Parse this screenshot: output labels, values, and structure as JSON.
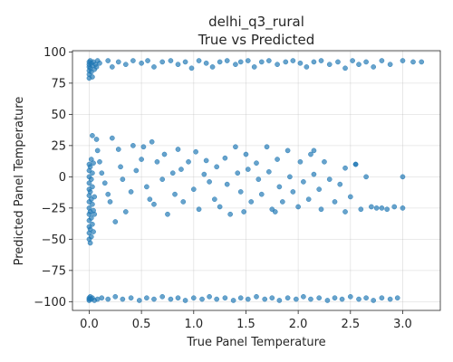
{
  "chart_data": {
    "type": "scatter",
    "title": "delhi_q3_rural",
    "subtitle": "True vs Predicted",
    "xlabel": "True Panel Temperature",
    "ylabel": "Predicted Panel Temperature",
    "xlim": [
      -0.16,
      3.36
    ],
    "ylim": [
      -107,
      101
    ],
    "xticks": [
      0.0,
      0.5,
      1.0,
      1.5,
      2.0,
      2.5,
      3.0
    ],
    "xtick_labels": [
      "0.0",
      "0.5",
      "1.0",
      "1.5",
      "2.0",
      "2.5",
      "3.0"
    ],
    "yticks": [
      -100,
      -75,
      -50,
      -25,
      0,
      25,
      50,
      75,
      100
    ],
    "ytick_labels": [
      "−100",
      "−75",
      "−50",
      "−25",
      "0",
      "25",
      "50",
      "75",
      "100"
    ],
    "grid": true,
    "marker_color": "#1f77b4",
    "series": [
      {
        "points": [
          [
            0.0,
            92
          ],
          [
            0.0,
            90
          ],
          [
            0.0,
            88
          ],
          [
            0.0,
            85
          ],
          [
            0.0,
            82
          ],
          [
            0.0,
            79
          ],
          [
            0.01,
            93
          ],
          [
            0.01,
            87
          ],
          [
            0.02,
            91
          ],
          [
            0.02,
            84
          ],
          [
            0.03,
            89
          ],
          [
            0.03,
            80
          ],
          [
            0.04,
            92
          ],
          [
            0.05,
            86
          ],
          [
            0.06,
            90
          ],
          [
            0.07,
            88
          ],
          [
            0.08,
            93
          ],
          [
            0.1,
            91
          ],
          [
            0.18,
            93
          ],
          [
            0.22,
            88
          ],
          [
            0.28,
            92
          ],
          [
            0.35,
            90
          ],
          [
            0.42,
            93
          ],
          [
            0.5,
            91
          ],
          [
            0.56,
            93
          ],
          [
            0.62,
            88
          ],
          [
            0.7,
            92
          ],
          [
            0.78,
            93
          ],
          [
            0.85,
            90
          ],
          [
            0.92,
            92
          ],
          [
            0.98,
            87
          ],
          [
            1.05,
            93
          ],
          [
            1.12,
            91
          ],
          [
            1.18,
            88
          ],
          [
            1.25,
            92
          ],
          [
            1.32,
            93
          ],
          [
            1.4,
            90
          ],
          [
            1.45,
            92
          ],
          [
            1.52,
            93
          ],
          [
            1.58,
            88
          ],
          [
            1.65,
            92
          ],
          [
            1.72,
            93
          ],
          [
            1.8,
            90
          ],
          [
            1.88,
            92
          ],
          [
            1.95,
            93
          ],
          [
            2.02,
            91
          ],
          [
            2.08,
            88
          ],
          [
            2.15,
            92
          ],
          [
            2.22,
            93
          ],
          [
            2.3,
            90
          ],
          [
            2.38,
            92
          ],
          [
            2.45,
            87
          ],
          [
            2.52,
            93
          ],
          [
            2.58,
            90
          ],
          [
            2.65,
            92
          ],
          [
            2.72,
            88
          ],
          [
            2.8,
            93
          ],
          [
            2.88,
            90
          ],
          [
            3.0,
            93
          ],
          [
            3.1,
            92
          ],
          [
            3.18,
            92
          ],
          [
            0.0,
            -98
          ],
          [
            0.0,
            -97
          ],
          [
            0.0,
            -99
          ],
          [
            0.01,
            -96
          ],
          [
            0.02,
            -98
          ],
          [
            0.03,
            -97
          ],
          [
            0.05,
            -99
          ],
          [
            0.08,
            -98
          ],
          [
            0.12,
            -97
          ],
          [
            0.18,
            -98
          ],
          [
            0.25,
            -96
          ],
          [
            0.32,
            -98
          ],
          [
            0.4,
            -97
          ],
          [
            0.48,
            -99
          ],
          [
            0.55,
            -97
          ],
          [
            0.62,
            -98
          ],
          [
            0.7,
            -96
          ],
          [
            0.78,
            -98
          ],
          [
            0.85,
            -97
          ],
          [
            0.92,
            -99
          ],
          [
            1.0,
            -97
          ],
          [
            1.08,
            -98
          ],
          [
            1.15,
            -96
          ],
          [
            1.22,
            -98
          ],
          [
            1.3,
            -97
          ],
          [
            1.38,
            -99
          ],
          [
            1.45,
            -97
          ],
          [
            1.52,
            -98
          ],
          [
            1.6,
            -96
          ],
          [
            1.68,
            -98
          ],
          [
            1.75,
            -97
          ],
          [
            1.82,
            -99
          ],
          [
            1.9,
            -97
          ],
          [
            1.98,
            -98
          ],
          [
            2.05,
            -96
          ],
          [
            2.12,
            -98
          ],
          [
            2.2,
            -97
          ],
          [
            2.28,
            -99
          ],
          [
            2.35,
            -97
          ],
          [
            2.42,
            -98
          ],
          [
            2.5,
            -96
          ],
          [
            2.58,
            -98
          ],
          [
            2.65,
            -97
          ],
          [
            2.72,
            -99
          ],
          [
            2.8,
            -97
          ],
          [
            2.88,
            -98
          ],
          [
            2.95,
            -97
          ],
          [
            0.0,
            -50
          ],
          [
            0.0,
            -45
          ],
          [
            0.0,
            -40
          ],
          [
            0.0,
            -35
          ],
          [
            0.0,
            -30
          ],
          [
            0.0,
            -25
          ],
          [
            0.0,
            -20
          ],
          [
            0.0,
            -15
          ],
          [
            0.0,
            -10
          ],
          [
            0.0,
            -5
          ],
          [
            0.0,
            0
          ],
          [
            0.0,
            5
          ],
          [
            0.0,
            10
          ],
          [
            0.01,
            -53
          ],
          [
            0.01,
            -42
          ],
          [
            0.01,
            -28
          ],
          [
            0.01,
            -12
          ],
          [
            0.01,
            8
          ],
          [
            0.02,
            -48
          ],
          [
            0.02,
            -33
          ],
          [
            0.02,
            -18
          ],
          [
            0.02,
            -2
          ],
          [
            0.02,
            14
          ],
          [
            0.03,
            -38
          ],
          [
            0.03,
            -22
          ],
          [
            0.03,
            -8
          ],
          [
            0.03,
            3
          ],
          [
            0.04,
            -44
          ],
          [
            0.04,
            -27
          ],
          [
            0.04,
            11
          ],
          [
            0.05,
            -16
          ],
          [
            0.05,
            -30
          ],
          [
            0.03,
            33
          ],
          [
            0.07,
            30
          ],
          [
            0.08,
            21
          ],
          [
            0.1,
            12
          ],
          [
            0.12,
            3
          ],
          [
            0.15,
            -5
          ],
          [
            0.18,
            -14
          ],
          [
            0.2,
            -20
          ],
          [
            0.22,
            31
          ],
          [
            0.25,
            -36
          ],
          [
            0.28,
            22
          ],
          [
            0.3,
            8
          ],
          [
            0.32,
            -2
          ],
          [
            0.35,
            -28
          ],
          [
            0.4,
            -12
          ],
          [
            0.42,
            25
          ],
          [
            0.45,
            5
          ],
          [
            0.5,
            14
          ],
          [
            0.52,
            24
          ],
          [
            0.55,
            -8
          ],
          [
            0.58,
            -18
          ],
          [
            0.6,
            28
          ],
          [
            0.62,
            -22
          ],
          [
            0.65,
            12
          ],
          [
            0.7,
            -2
          ],
          [
            0.72,
            18
          ],
          [
            0.75,
            -30
          ],
          [
            0.8,
            3
          ],
          [
            0.82,
            -14
          ],
          [
            0.85,
            22
          ],
          [
            0.88,
            6
          ],
          [
            0.9,
            -20
          ],
          [
            0.95,
            12
          ],
          [
            1.0,
            -10
          ],
          [
            1.02,
            20
          ],
          [
            1.05,
            -26
          ],
          [
            1.1,
            2
          ],
          [
            1.12,
            13
          ],
          [
            1.15,
            -4
          ],
          [
            1.2,
            -18
          ],
          [
            1.22,
            8
          ],
          [
            1.25,
            -24
          ],
          [
            1.3,
            15
          ],
          [
            1.32,
            -6
          ],
          [
            1.35,
            -30
          ],
          [
            1.4,
            24
          ],
          [
            1.42,
            3
          ],
          [
            1.45,
            -12
          ],
          [
            1.48,
            -28
          ],
          [
            1.5,
            18
          ],
          [
            1.52,
            6
          ],
          [
            1.55,
            -20
          ],
          [
            1.6,
            11
          ],
          [
            1.62,
            -2
          ],
          [
            1.65,
            -14
          ],
          [
            1.7,
            24
          ],
          [
            1.72,
            4
          ],
          [
            1.75,
            -26
          ],
          [
            1.8,
            14
          ],
          [
            1.82,
            -8
          ],
          [
            1.85,
            -20
          ],
          [
            1.9,
            21
          ],
          [
            1.92,
            0
          ],
          [
            1.95,
            -12
          ],
          [
            2.0,
            -24
          ],
          [
            2.02,
            12
          ],
          [
            2.05,
            -4
          ],
          [
            2.1,
            -18
          ],
          [
            2.12,
            18
          ],
          [
            2.15,
            2
          ],
          [
            2.2,
            -10
          ],
          [
            2.22,
            -26
          ],
          [
            2.25,
            12
          ],
          [
            2.3,
            -2
          ],
          [
            2.35,
            -20
          ],
          [
            2.4,
            -6
          ],
          [
            2.45,
            7
          ],
          [
            2.5,
            -16
          ],
          [
            2.55,
            10
          ],
          [
            2.6,
            -26
          ],
          [
            2.65,
            0
          ],
          [
            2.7,
            -24
          ],
          [
            2.75,
            -25
          ],
          [
            2.8,
            -25
          ],
          [
            2.85,
            -26
          ],
          [
            2.92,
            -24
          ],
          [
            3.0,
            -25
          ],
          [
            2.45,
            -28
          ],
          [
            2.15,
            21
          ],
          [
            1.78,
            -28
          ],
          [
            2.55,
            10
          ],
          [
            3.0,
            0
          ]
        ]
      }
    ]
  }
}
